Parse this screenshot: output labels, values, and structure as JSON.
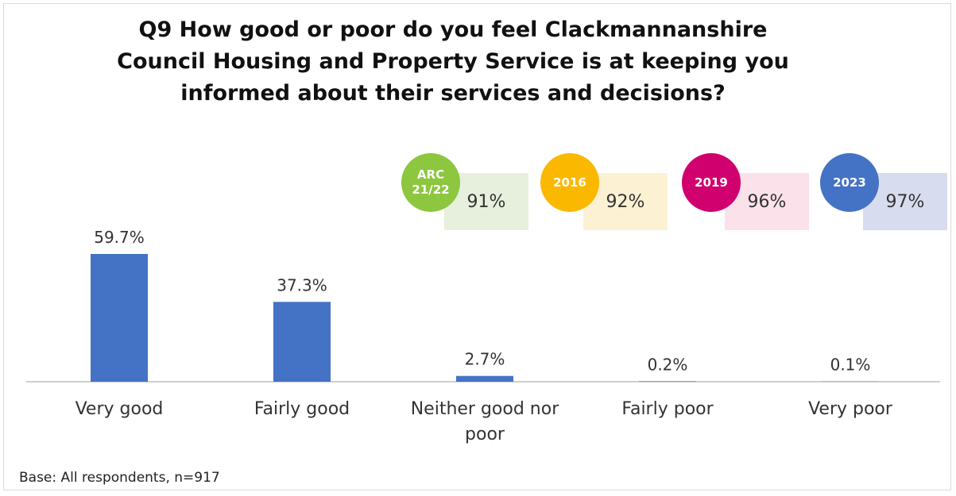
{
  "title_lines": [
    "Q9 How good or poor do you feel Clackmannanshire",
    "Council Housing and Property Service is at keeping you",
    "informed about their services and decisions?"
  ],
  "base_note": "Base: All respondents, n=917",
  "benchmarks": [
    {
      "badge_lines": [
        "ARC",
        "21/22"
      ],
      "value": "91%",
      "circle_color": "#8dc63f",
      "box_color": "#e6f0dc"
    },
    {
      "badge_lines": [
        "2016"
      ],
      "value": "92%",
      "circle_color": "#fbb800",
      "box_color": "#fdf1d3"
    },
    {
      "badge_lines": [
        "2019"
      ],
      "value": "96%",
      "circle_color": "#d0006f",
      "box_color": "#fbe1ea"
    },
    {
      "badge_lines": [
        "2023"
      ],
      "value": "97%",
      "circle_color": "#4472c4",
      "box_color": "#d8dcef"
    }
  ],
  "colors": {
    "bar": "#4472c4",
    "axis": "#bfbfbf"
  },
  "chart_data": {
    "type": "bar",
    "categories": [
      [
        "Very good"
      ],
      [
        "Fairly good"
      ],
      [
        "Neither good nor",
        "poor"
      ],
      [
        "Fairly poor"
      ],
      [
        "Very poor"
      ]
    ],
    "values": [
      59.7,
      37.3,
      2.7,
      0.2,
      0.1
    ],
    "value_labels": [
      "59.7%",
      "37.3%",
      "2.7%",
      "0.2%",
      "0.1%"
    ],
    "title": "Q9 How good or poor do you feel Clackmannanshire Council Housing and Property Service is at keeping you informed about their services and decisions?",
    "xlabel": "",
    "ylabel": "",
    "ylim": [
      0,
      100
    ],
    "grid": false,
    "legend": "none"
  }
}
